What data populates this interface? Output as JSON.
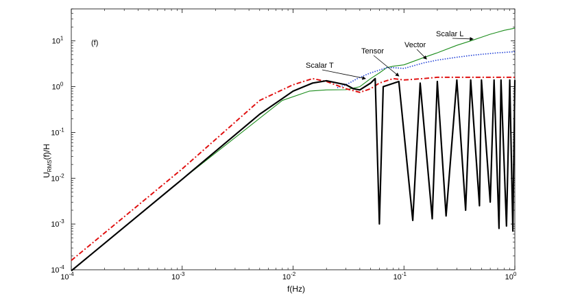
{
  "chart_data": {
    "type": "line",
    "panel_label": "(f)",
    "xlabel": "f(Hz)",
    "ylabel": {
      "main": "U",
      "sub": "RMS",
      "rest": "(f)/H"
    },
    "xscale": "log",
    "yscale": "log",
    "xlim": [
      0.0001,
      1
    ],
    "ylim": [
      0.0001,
      50
    ],
    "x_ticks": [
      {
        "value": 0.0001,
        "base": "10",
        "exp": "-4"
      },
      {
        "value": 0.001,
        "base": "10",
        "exp": "-3"
      },
      {
        "value": 0.01,
        "base": "10",
        "exp": "-2"
      },
      {
        "value": 0.1,
        "base": "10",
        "exp": "-1"
      },
      {
        "value": 1,
        "base": "10",
        "exp": "0"
      }
    ],
    "y_ticks": [
      {
        "value": 0.0001,
        "base": "10",
        "exp": "-4"
      },
      {
        "value": 0.001,
        "base": "10",
        "exp": "-3"
      },
      {
        "value": 0.01,
        "base": "10",
        "exp": "-2"
      },
      {
        "value": 0.1,
        "base": "10",
        "exp": "-1"
      },
      {
        "value": 1,
        "base": "10",
        "exp": "0"
      },
      {
        "value": 10,
        "base": "10",
        "exp": "1"
      }
    ],
    "series": [
      {
        "name": "Scalar L",
        "color": "#1a8c1a",
        "style": "solid",
        "points": [
          [
            0.0001,
            9.5e-05
          ],
          [
            0.001,
            0.0095
          ],
          [
            0.008,
            0.5
          ],
          [
            0.014,
            0.8
          ],
          [
            0.02,
            0.85
          ],
          [
            0.03,
            0.86
          ],
          [
            0.04,
            1.0
          ],
          [
            0.05,
            1.5
          ],
          [
            0.06,
            2.0
          ],
          [
            0.07,
            2.6
          ],
          [
            0.08,
            2.8
          ],
          [
            0.1,
            3.0
          ],
          [
            0.15,
            4.3
          ],
          [
            0.2,
            5.5
          ],
          [
            0.3,
            8.0
          ],
          [
            0.4,
            10.0
          ],
          [
            0.5,
            12.0
          ],
          [
            0.6,
            14.0
          ],
          [
            0.7,
            15.5
          ],
          [
            0.8,
            17.0
          ],
          [
            0.9,
            18.0
          ],
          [
            1.0,
            19.0
          ]
        ]
      },
      {
        "name": "Vector",
        "color": "#1f3fd6",
        "style": "dotted",
        "points": [
          [
            0.025,
            0.95
          ],
          [
            0.03,
            1.1
          ],
          [
            0.04,
            1.6
          ],
          [
            0.05,
            2.0
          ],
          [
            0.06,
            2.3
          ],
          [
            0.07,
            2.6
          ],
          [
            0.08,
            2.6
          ],
          [
            0.1,
            2.5
          ],
          [
            0.15,
            3.3
          ],
          [
            0.2,
            3.8
          ],
          [
            0.3,
            4.4
          ],
          [
            0.4,
            4.8
          ],
          [
            0.5,
            5.1
          ],
          [
            0.6,
            5.3
          ],
          [
            0.7,
            5.5
          ],
          [
            0.8,
            5.6
          ],
          [
            0.9,
            5.7
          ],
          [
            1.0,
            5.8
          ]
        ]
      },
      {
        "name": "Tensor",
        "color": "#e01010",
        "style": "dashdot",
        "points": [
          [
            0.0001,
            0.00016
          ],
          [
            0.001,
            0.016
          ],
          [
            0.005,
            0.5
          ],
          [
            0.01,
            1.1
          ],
          [
            0.015,
            1.5
          ],
          [
            0.02,
            1.3
          ],
          [
            0.03,
            0.9
          ],
          [
            0.04,
            0.75
          ],
          [
            0.05,
            0.9
          ],
          [
            0.06,
            1.2
          ],
          [
            0.08,
            1.5
          ],
          [
            0.1,
            1.4
          ],
          [
            0.15,
            1.5
          ],
          [
            0.2,
            1.6
          ],
          [
            0.3,
            1.6
          ],
          [
            0.5,
            1.6
          ],
          [
            0.7,
            1.6
          ],
          [
            1.0,
            1.6
          ]
        ]
      },
      {
        "name": "Scalar T",
        "color": "#000000",
        "style": "solid",
        "points": [
          [
            0.0001,
            9.5e-05
          ],
          [
            0.001,
            0.0095
          ],
          [
            0.005,
            0.25
          ],
          [
            0.01,
            0.8
          ],
          [
            0.015,
            1.2
          ],
          [
            0.02,
            1.35
          ],
          [
            0.03,
            1.1
          ],
          [
            0.035,
            0.9
          ],
          [
            0.04,
            0.85
          ],
          [
            0.05,
            1.2
          ],
          [
            0.055,
            1.5
          ],
          [
            0.06,
            0.001
          ],
          [
            0.065,
            1.0
          ],
          [
            0.09,
            1.3
          ],
          [
            0.12,
            0.0012
          ],
          [
            0.14,
            1.2
          ],
          [
            0.18,
            0.0013
          ],
          [
            0.2,
            1.3
          ],
          [
            0.24,
            0.0015
          ],
          [
            0.3,
            1.4
          ],
          [
            0.36,
            0.002
          ],
          [
            0.4,
            1.4
          ],
          [
            0.48,
            0.0025
          ],
          [
            0.5,
            1.4
          ],
          [
            0.6,
            0.003
          ],
          [
            0.65,
            1.4
          ],
          [
            0.72,
            0.0008
          ],
          [
            0.75,
            1.4
          ],
          [
            0.84,
            0.0009
          ],
          [
            0.9,
            1.4
          ],
          [
            0.96,
            0.0007
          ],
          [
            1.0,
            1.4
          ]
        ]
      }
    ],
    "annotations": [
      {
        "text": "Scalar L",
        "target_series": "Scalar L"
      },
      {
        "text": "Vector",
        "target_series": "Vector"
      },
      {
        "text": "Tensor",
        "target_series": "Tensor"
      },
      {
        "text": "Scalar T",
        "target_series": "Scalar T"
      }
    ]
  }
}
